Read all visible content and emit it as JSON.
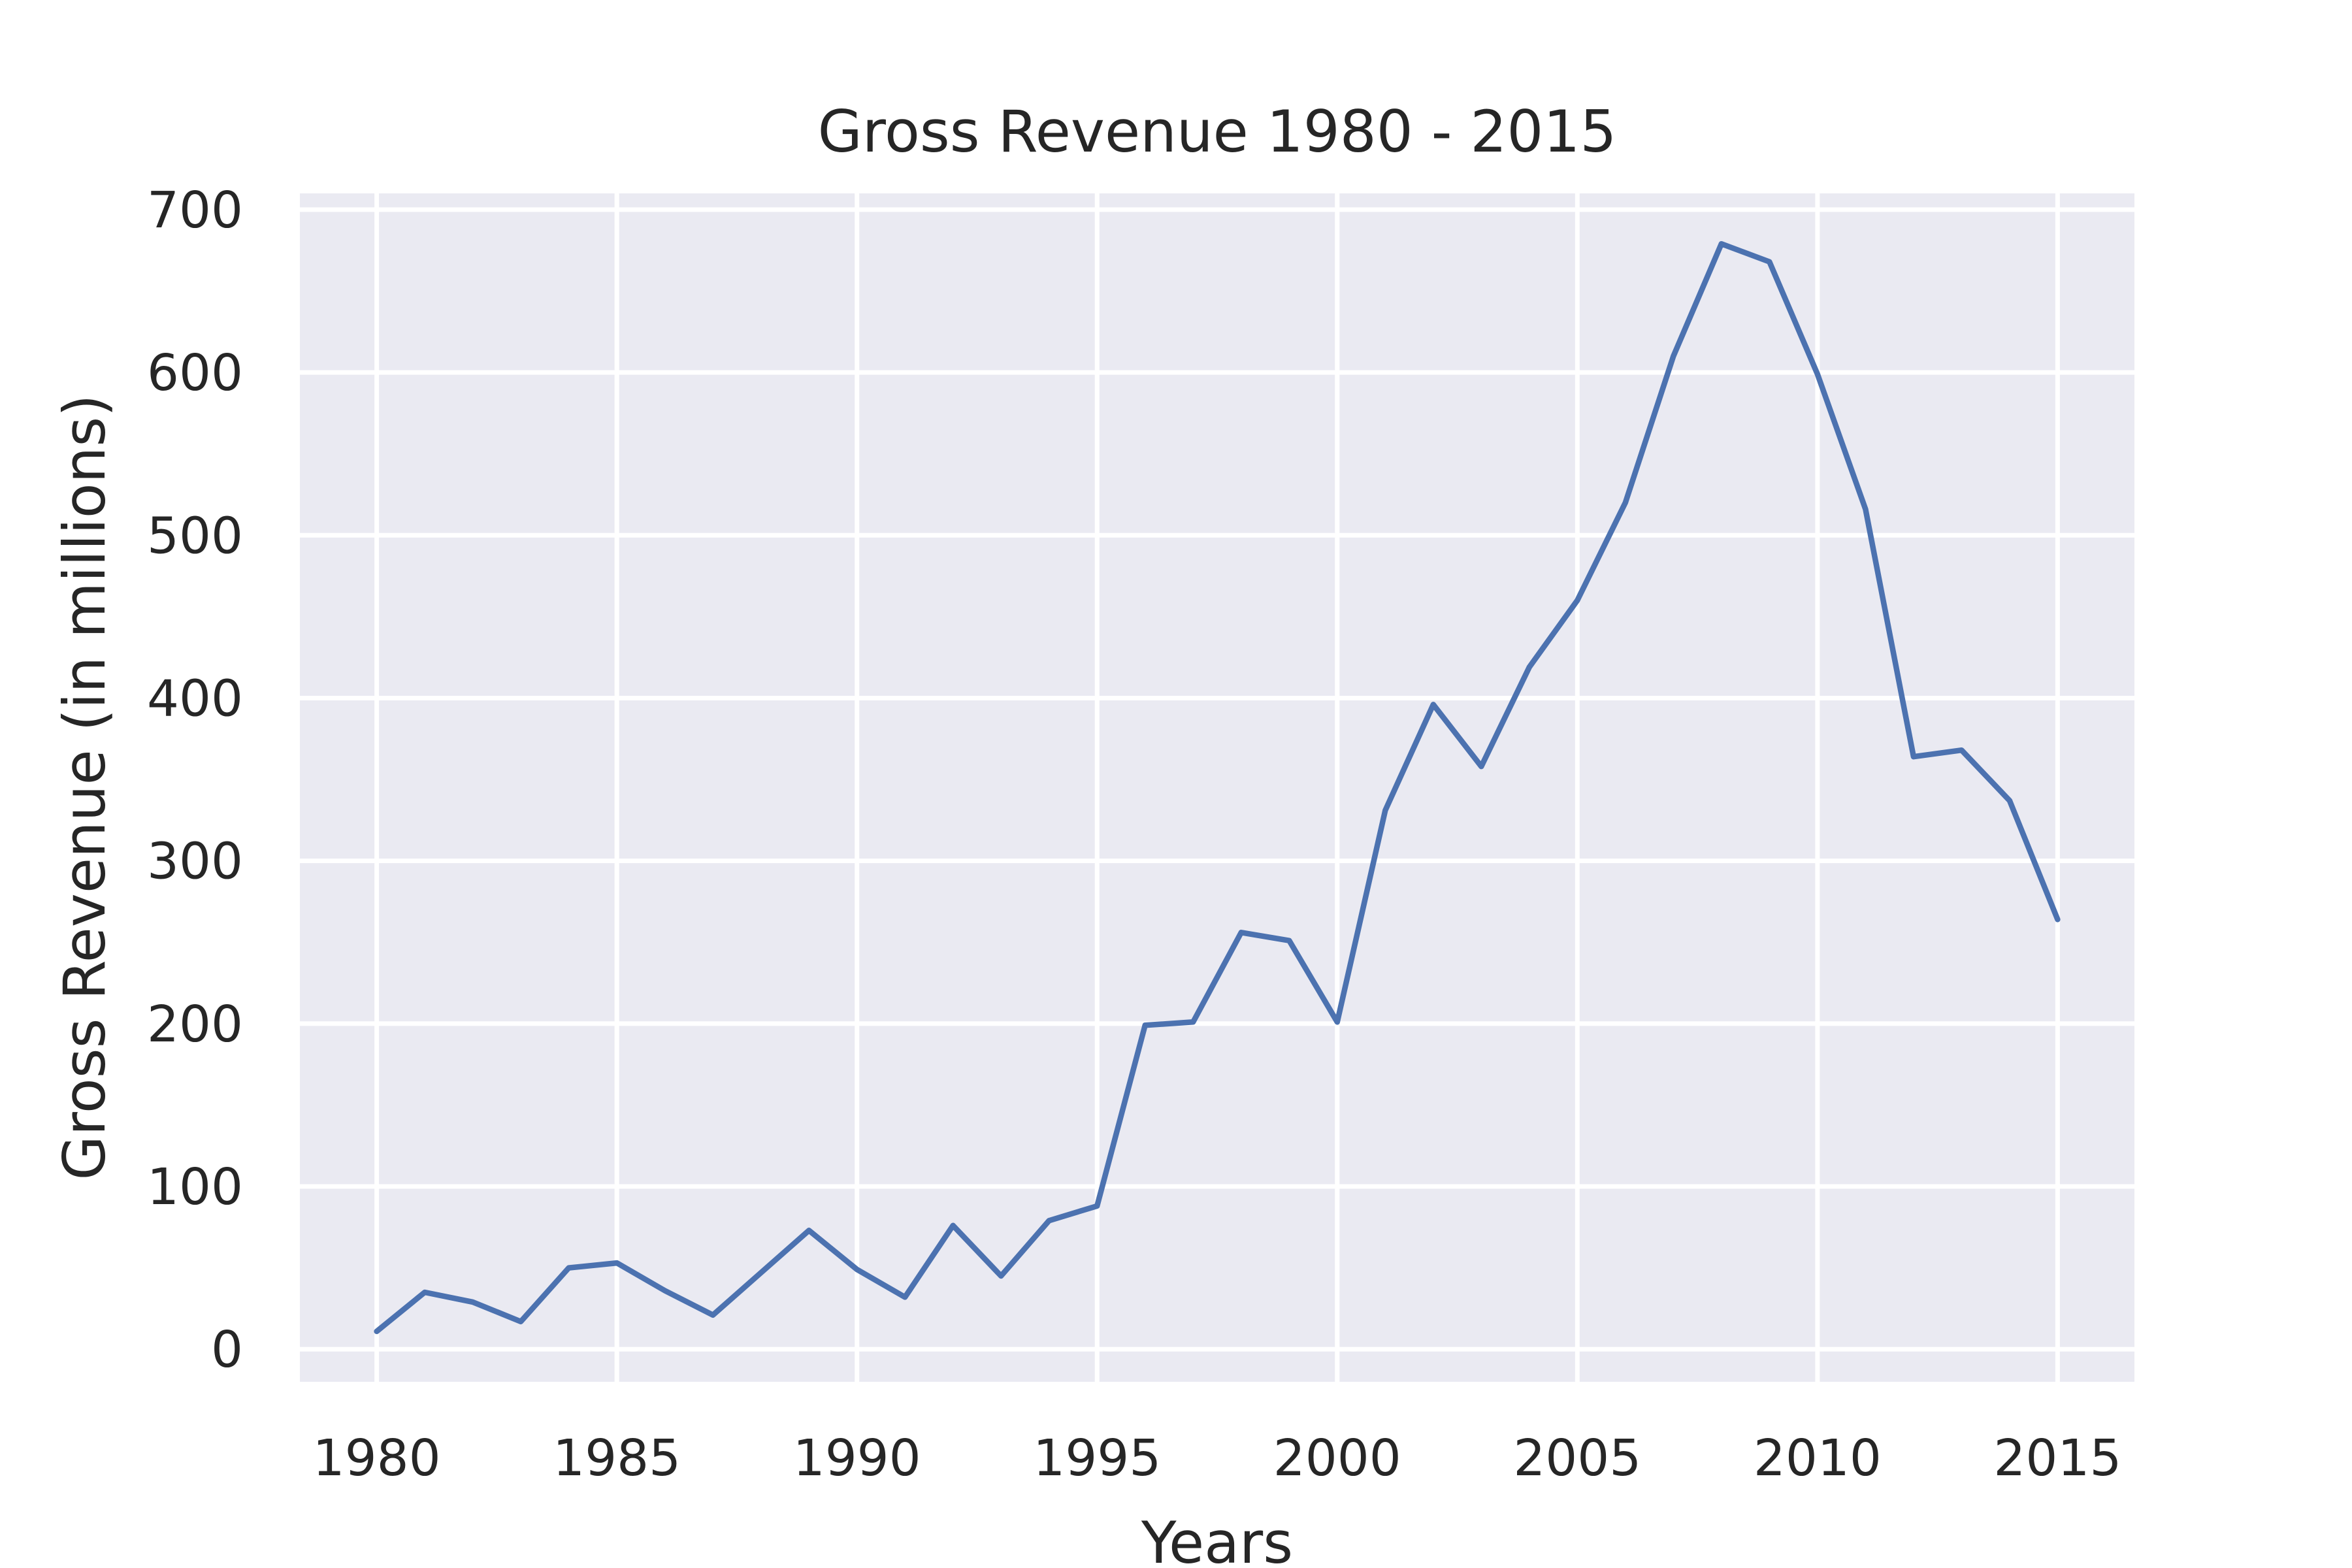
{
  "chart_data": {
    "type": "line",
    "title": "Gross Revenue 1980 - 2015",
    "xlabel": "Years",
    "ylabel": "Gross Revenue (in millions)",
    "xlim": [
      1978.4,
      2016.6
    ],
    "ylim": [
      -20,
      710
    ],
    "x_ticks": [
      1980,
      1985,
      1990,
      1995,
      2000,
      2005,
      2010,
      2015
    ],
    "y_ticks": [
      0,
      100,
      200,
      300,
      400,
      500,
      600,
      700
    ],
    "grid": true,
    "legend": "none",
    "background_color": "#eaeaf2",
    "series": [
      {
        "color": "#4c72b0",
        "x": [
          1980,
          1981,
          1982,
          1983,
          1984,
          1985,
          1986,
          1987,
          1988,
          1989,
          1990,
          1991,
          1992,
          1993,
          1994,
          1995,
          1996,
          1997,
          1998,
          1999,
          2000,
          2001,
          2002,
          2003,
          2004,
          2005,
          2006,
          2007,
          2008,
          2009,
          2010,
          2011,
          2012,
          2013,
          2014,
          2015
        ],
        "y": [
          11,
          35,
          29,
          17,
          50,
          53,
          36,
          21,
          47,
          73,
          49,
          32,
          76,
          45,
          79,
          88,
          199,
          201,
          256,
          251,
          201,
          331,
          396,
          358,
          419,
          460,
          520,
          610,
          679,
          668,
          599,
          516,
          364,
          368,
          337,
          264
        ]
      }
    ]
  }
}
